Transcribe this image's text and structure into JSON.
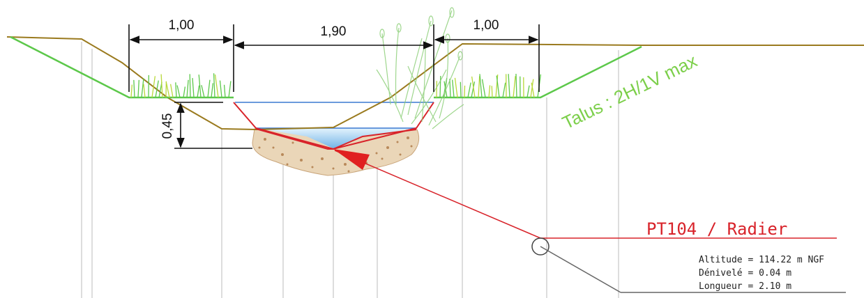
{
  "dimensions": {
    "left_berm_width": "1,00",
    "channel_width": "1,90",
    "right_berm_width": "1,00",
    "depth": "0,45"
  },
  "slope_label": "Talus : 2H/1V max",
  "callout": {
    "title": "PT104 / Radier",
    "altitude": "Altitude = 114.22 m NGF",
    "denivele": "Dénivelé = 0.04 m",
    "longueur": "Longueur = 2.10 m"
  },
  "colors": {
    "terrain_green": "#5cc84a",
    "terrain_brown": "#9a7a1e",
    "channel_red": "#d8232a",
    "water_line": "#3a78d0",
    "water_fill": "#a9d4f2",
    "gravel_fill": "#ead6b8",
    "guide_lines": "#d2d2d2",
    "dim_lines": "#111111"
  }
}
